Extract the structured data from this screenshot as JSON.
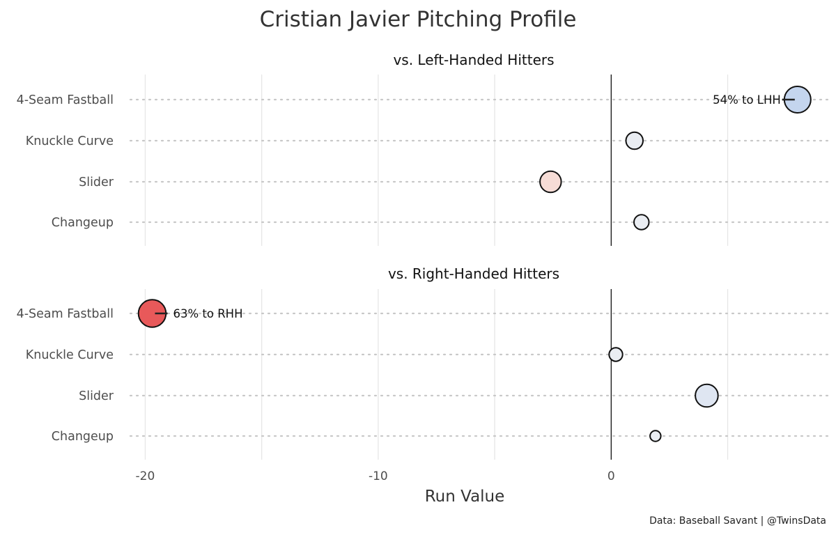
{
  "title": "Cristian Javier Pitching Profile",
  "caption": "Data: Baseball Savant | @TwinsData",
  "colors": {
    "negative": "#e8595a",
    "negative_light": "#f6dcd6",
    "neutral": "#eaedf2",
    "positive_light": "#dfe6f2",
    "positive": "#c4d5ee",
    "zero_line": "#000000",
    "grid": "#e6e6e6",
    "dotted_row": "#c8c8c8"
  },
  "chart_data": {
    "type": "scatter",
    "xlabel": "Run Value",
    "ylabel": "",
    "xlim": [
      -21,
      9.5
    ],
    "x_ticks": [
      -20,
      -10,
      0
    ],
    "grid": true,
    "facets": [
      {
        "title": "vs. Left-Handed Hitters",
        "categories": [
          "4-Seam Fastball",
          "Knuckle Curve",
          "Slider",
          "Changeup"
        ],
        "points": [
          {
            "pitch": "4-Seam Fastball",
            "run_value": 8.0,
            "size_rel": 1.0,
            "color": "#c4d5ee"
          },
          {
            "pitch": "Knuckle Curve",
            "run_value": 1.0,
            "size_rel": 0.55,
            "color": "#eaedf2"
          },
          {
            "pitch": "Slider",
            "run_value": -2.6,
            "size_rel": 0.75,
            "color": "#f6dcd6"
          },
          {
            "pitch": "Changeup",
            "run_value": 1.3,
            "size_rel": 0.45,
            "color": "#eaedf2"
          }
        ],
        "annotation": {
          "pitch": "4-Seam Fastball",
          "text": "54% to LHH",
          "side": "left"
        }
      },
      {
        "title": "vs. Right-Handed Hitters",
        "categories": [
          "4-Seam Fastball",
          "Knuckle Curve",
          "Slider",
          "Changeup"
        ],
        "points": [
          {
            "pitch": "4-Seam Fastball",
            "run_value": -19.7,
            "size_rel": 1.05,
            "color": "#e8595a"
          },
          {
            "pitch": "Knuckle Curve",
            "run_value": 0.2,
            "size_rel": 0.38,
            "color": "#eaedf2"
          },
          {
            "pitch": "Slider",
            "run_value": 4.1,
            "size_rel": 0.82,
            "color": "#dfe6f2"
          },
          {
            "pitch": "Changeup",
            "run_value": 1.9,
            "size_rel": 0.25,
            "color": "#eaedf2"
          }
        ],
        "annotation": {
          "pitch": "4-Seam Fastball",
          "text": "63% to RHH",
          "side": "right"
        }
      }
    ]
  }
}
